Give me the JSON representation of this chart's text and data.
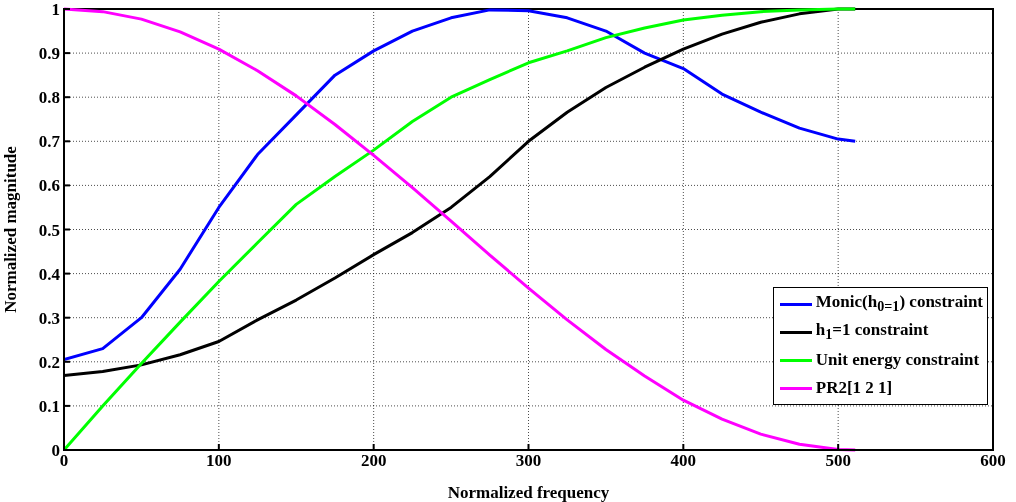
{
  "chart_data": {
    "type": "line",
    "xlabel": "Normalized frequency",
    "ylabel": "Normalized magnitude",
    "x": [
      0,
      25,
      50,
      75,
      100,
      125,
      150,
      175,
      200,
      225,
      250,
      275,
      300,
      325,
      350,
      375,
      400,
      425,
      450,
      475,
      500,
      511
    ],
    "series": [
      {
        "name": "Monic(h$_{0=1}$) constraint",
        "color": "#0000ff",
        "values": [
          0.205,
          0.23,
          0.3,
          0.41,
          0.55,
          0.67,
          0.76,
          0.85,
          0.905,
          0.95,
          0.98,
          0.998,
          0.996,
          0.98,
          0.95,
          0.9,
          0.865,
          0.807,
          0.766,
          0.73,
          0.705,
          0.7
        ]
      },
      {
        "name": "h$_{1}$=1 constraint",
        "color": "#000000",
        "values": [
          0.169,
          0.178,
          0.193,
          0.216,
          0.246,
          0.295,
          0.34,
          0.39,
          0.443,
          0.493,
          0.55,
          0.62,
          0.7,
          0.766,
          0.822,
          0.868,
          0.909,
          0.943,
          0.97,
          0.989,
          1.0,
          1.0
        ]
      },
      {
        "name": "Unit energy constraint",
        "color": "#00ff00",
        "values": [
          0,
          0.1,
          0.196,
          0.29,
          0.382,
          0.47,
          0.557,
          0.62,
          0.68,
          0.745,
          0.8,
          0.84,
          0.878,
          0.905,
          0.935,
          0.957,
          0.975,
          0.986,
          0.994,
          0.998,
          1.0,
          1.0
        ]
      },
      {
        "name": "PR2[1 2 1]",
        "color": "#ff00ff",
        "values": [
          1,
          0.994,
          0.977,
          0.948,
          0.909,
          0.86,
          0.803,
          0.738,
          0.668,
          0.595,
          0.519,
          0.442,
          0.367,
          0.295,
          0.228,
          0.168,
          0.113,
          0.07,
          0.036,
          0.013,
          0.001,
          0
        ]
      }
    ],
    "xlim": [
      0,
      600
    ],
    "xticks": [
      0,
      100,
      200,
      300,
      400,
      500,
      600
    ],
    "ylim": [
      0,
      1
    ],
    "yticks": [
      0,
      0.1,
      0.2,
      0.3,
      0.4,
      0.5,
      0.6,
      0.7,
      0.8,
      0.9,
      1
    ],
    "grid": true,
    "legend": "bottom right",
    "marker": "none",
    "line_style": "solid"
  }
}
